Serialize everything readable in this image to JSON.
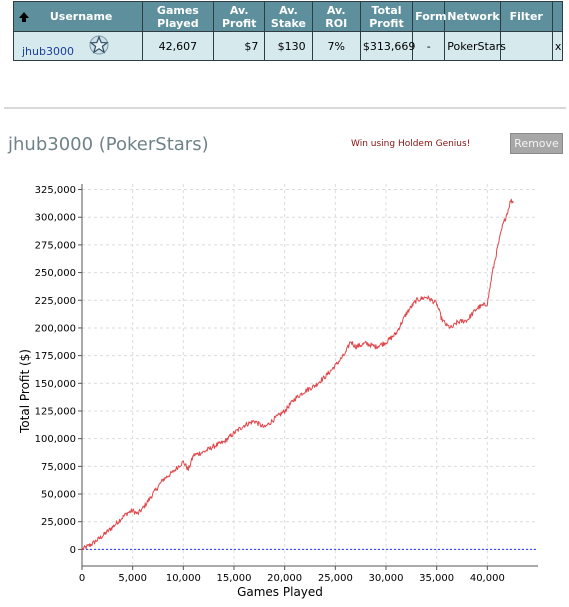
{
  "table": {
    "headers": {
      "username": "Username",
      "games": "Games Played",
      "profit": "Av. Profit",
      "stake": "Av. Stake",
      "roi": "Av. ROI",
      "total": "Total Profit",
      "form": "Form",
      "network": "Network",
      "filter": "Filter"
    },
    "row": {
      "username": "jhub3000",
      "games": "42,607",
      "profit": "$7",
      "stake": "$130",
      "roi": "7%",
      "total": "$313,669",
      "form": "-",
      "network": "PokerStars",
      "filter": "",
      "remove": "x"
    }
  },
  "title": "jhub3000 (PokerStars)",
  "promo": "Win using Holdem Genius!",
  "remove_label": "Remove",
  "colors": {
    "header_bg": "#5d909c",
    "row_bg": "#d6eaee",
    "line": "#e0474c",
    "zero_line": "#2233ff"
  },
  "chart_data": {
    "type": "line",
    "xlabel": "Games Played",
    "ylabel": "Total Profit ($)",
    "xlim": [
      0,
      45000
    ],
    "ylim": [
      -15000,
      330000
    ],
    "x_ticks": [
      0,
      5000,
      10000,
      15000,
      20000,
      25000,
      30000,
      35000,
      40000
    ],
    "x_tick_labels": [
      "0",
      "5,000",
      "10,000",
      "15,000",
      "20,000",
      "25,000",
      "30,000",
      "35,000",
      "40,000"
    ],
    "y_ticks": [
      0,
      25000,
      50000,
      75000,
      100000,
      125000,
      150000,
      175000,
      200000,
      225000,
      250000,
      275000,
      300000,
      325000
    ],
    "y_tick_labels": [
      "0",
      "25,000",
      "50,000",
      "75,000",
      "100,000",
      "125,000",
      "150,000",
      "175,000",
      "200,000",
      "225,000",
      "250,000",
      "275,000",
      "300,000",
      "325,000"
    ],
    "grid": true,
    "zero_line": true,
    "series": [
      {
        "x": [
          0,
          1000,
          2000,
          3000,
          4000,
          4500,
          5000,
          5500,
          6000,
          7000,
          8000,
          9000,
          9500,
          10000,
          10500,
          11000,
          12000,
          13000,
          14000,
          15000,
          16000,
          17000,
          17500,
          18000,
          19000,
          20000,
          21000,
          22000,
          23000,
          24000,
          25000,
          26000,
          26500,
          27000,
          28000,
          29000,
          30000,
          31000,
          32000,
          33000,
          34000,
          35000,
          35500,
          36000,
          36500,
          37000,
          38000,
          39000,
          40000,
          40500,
          41000,
          41500,
          42000,
          42300,
          42607
        ],
        "y": [
          0,
          5000,
          12000,
          20000,
          29000,
          33000,
          35000,
          32000,
          37000,
          50000,
          63000,
          70000,
          75000,
          79000,
          72000,
          85000,
          88000,
          93000,
          97000,
          105000,
          112000,
          116000,
          113000,
          110000,
          118000,
          125000,
          136000,
          143000,
          148000,
          156000,
          166000,
          177000,
          188000,
          183000,
          186000,
          183000,
          187000,
          195000,
          213000,
          225000,
          228000,
          222000,
          208000,
          202000,
          200000,
          205000,
          207000,
          218000,
          222000,
          250000,
          272000,
          292000,
          305000,
          315000,
          313669
        ]
      }
    ]
  }
}
